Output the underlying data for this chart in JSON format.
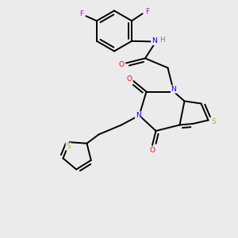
{
  "background_color": "#ebebeb",
  "atom_colors": {
    "C": "#000000",
    "N": "#0000ff",
    "O": "#ff0000",
    "S": "#ccaa00",
    "F": "#cc00cc",
    "H": "#558888"
  },
  "figsize": [
    3.0,
    3.0
  ],
  "dpi": 100
}
